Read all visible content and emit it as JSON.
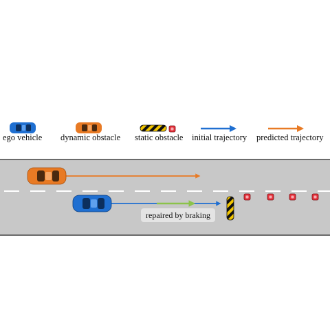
{
  "legend": {
    "ego_vehicle": "ego vehicle",
    "dynamic_obstacle": "dynamic obstacle",
    "static_obstacle": "static obstacle",
    "initial_trajectory": "initial trajectory",
    "predicted_trajectory": "predicted trajectory"
  },
  "annotation": {
    "repair_label": "repaired by braking"
  },
  "colors": {
    "ego_vehicle": "#1f6fd1",
    "dynamic_obstacle": "#e87a24",
    "initial_trajectory": "#1f6fd1",
    "predicted_trajectory": "#e87a24",
    "repaired_trajectory": "#8bc34a",
    "static_obstacle_stripe_a": "#f2c500",
    "static_obstacle_stripe_b": "#111111",
    "cone": "#e5313b",
    "road": "#c8c8c8",
    "road_edge": "#6b6b6b",
    "lane_marking": "#ffffff"
  }
}
